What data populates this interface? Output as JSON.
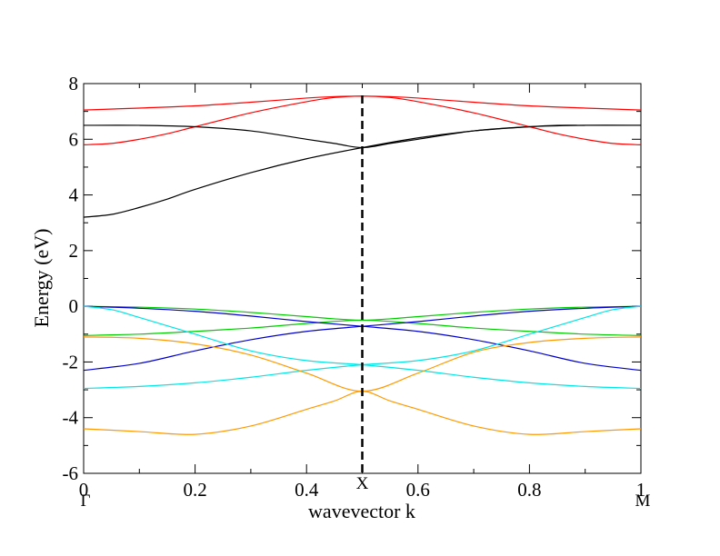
{
  "chart_data": {
    "type": "line",
    "title": "",
    "xlabel": "wavevector k",
    "ylabel": "Energy (eV)",
    "xlim": [
      0,
      1
    ],
    "ylim": [
      -6,
      8
    ],
    "xticks": [
      0,
      0.2,
      0.4,
      0.6,
      0.8,
      1
    ],
    "xtick_labels": [
      "0",
      "0.2",
      "0.4",
      "0.6",
      "0.8",
      "1"
    ],
    "yticks": [
      -6,
      -4,
      -2,
      0,
      2,
      4,
      6,
      8
    ],
    "ytick_labels": [
      "-6",
      "-4",
      "-2",
      "0",
      "2",
      "4",
      "6",
      "8"
    ],
    "grid": false,
    "kpoints": [
      {
        "label": "Γ",
        "k": 0
      },
      {
        "label": "X",
        "k": 0.5
      },
      {
        "label": "M",
        "k": 1
      }
    ],
    "vline": {
      "k": 0.5,
      "style": "dashed"
    },
    "series": [
      {
        "name": "band-red-top",
        "color": "#ff0000",
        "x": [
          0,
          0.1,
          0.2,
          0.3,
          0.4,
          0.45,
          0.5,
          0.55,
          0.6,
          0.7,
          0.8,
          0.9,
          1
        ],
        "values": [
          7.05,
          7.12,
          7.2,
          7.33,
          7.48,
          7.53,
          7.55,
          7.53,
          7.48,
          7.33,
          7.2,
          7.12,
          7.05
        ]
      },
      {
        "name": "band-red-lower",
        "color": "#ff0000",
        "x": [
          0,
          0.05,
          0.1,
          0.15,
          0.2,
          0.3,
          0.4,
          0.45,
          0.5,
          0.55,
          0.6,
          0.7,
          0.8,
          0.85,
          0.9,
          0.95,
          1
        ],
        "values": [
          5.8,
          5.85,
          6.0,
          6.2,
          6.45,
          6.95,
          7.35,
          7.5,
          7.55,
          7.5,
          7.35,
          6.95,
          6.45,
          6.2,
          6.0,
          5.85,
          5.8
        ]
      },
      {
        "name": "band-black-flat",
        "color": "#000000",
        "x": [
          0,
          0.1,
          0.2,
          0.3,
          0.4,
          0.45,
          0.5,
          0.55,
          0.6,
          0.7,
          0.8,
          0.9,
          1
        ],
        "values": [
          6.5,
          6.5,
          6.45,
          6.3,
          6.0,
          5.85,
          5.7,
          5.85,
          6.0,
          6.3,
          6.45,
          6.5,
          6.5
        ]
      },
      {
        "name": "band-black-lower",
        "color": "#000000",
        "x": [
          0,
          0.05,
          0.1,
          0.15,
          0.2,
          0.3,
          0.4,
          0.5,
          0.6,
          0.7,
          0.8,
          0.85,
          0.9,
          0.95,
          1
        ],
        "values": [
          3.2,
          3.3,
          3.55,
          3.85,
          4.2,
          4.8,
          5.3,
          5.7,
          6.05,
          6.3,
          6.45,
          6.5,
          6.5,
          6.5,
          6.5
        ]
      },
      {
        "name": "band-green-top",
        "color": "#00cc00",
        "x": [
          0,
          0.1,
          0.2,
          0.3,
          0.4,
          0.45,
          0.5,
          0.55,
          0.6,
          0.7,
          0.8,
          0.9,
          1
        ],
        "values": [
          0.0,
          -0.03,
          -0.1,
          -0.22,
          -0.37,
          -0.45,
          -0.5,
          -0.45,
          -0.37,
          -0.22,
          -0.1,
          -0.03,
          0.0
        ]
      },
      {
        "name": "band-green-lower",
        "color": "#00cc00",
        "x": [
          0,
          0.1,
          0.2,
          0.3,
          0.4,
          0.5,
          0.6,
          0.7,
          0.8,
          0.9,
          1
        ],
        "values": [
          -1.05,
          -1.0,
          -0.9,
          -0.78,
          -0.62,
          -0.5,
          -0.62,
          -0.78,
          -0.9,
          -1.0,
          -1.05
        ]
      },
      {
        "name": "band-blue-top",
        "color": "#0000cc",
        "x": [
          0,
          0.1,
          0.2,
          0.3,
          0.4,
          0.5,
          0.6,
          0.7,
          0.8,
          0.9,
          1
        ],
        "values": [
          0.0,
          -0.07,
          -0.18,
          -0.35,
          -0.55,
          -0.72,
          -0.9,
          -1.2,
          -1.6,
          -2.05,
          -2.3
        ]
      },
      {
        "name": "band-blue-lower",
        "color": "#0000cc",
        "x": [
          0,
          0.1,
          0.2,
          0.3,
          0.4,
          0.5,
          0.6,
          0.7,
          0.8,
          0.9,
          1
        ],
        "values": [
          -2.3,
          -2.05,
          -1.6,
          -1.2,
          -0.9,
          -0.72,
          -0.55,
          -0.35,
          -0.18,
          -0.07,
          0.0
        ]
      },
      {
        "name": "band-cyan-upper",
        "color": "#00e5e5",
        "x": [
          0,
          0.05,
          0.1,
          0.2,
          0.3,
          0.4,
          0.5,
          0.6,
          0.7,
          0.8,
          0.9,
          1
        ],
        "values": [
          0.0,
          -0.12,
          -0.4,
          -1.0,
          -1.6,
          -1.95,
          -2.1,
          -2.3,
          -2.55,
          -2.75,
          -2.88,
          -2.95
        ]
      },
      {
        "name": "band-cyan-lower",
        "color": "#00e5e5",
        "x": [
          0,
          0.1,
          0.2,
          0.3,
          0.4,
          0.5,
          0.6,
          0.7,
          0.8,
          0.9,
          0.95,
          1
        ],
        "values": [
          -2.95,
          -2.88,
          -2.75,
          -2.55,
          -2.3,
          -2.1,
          -1.95,
          -1.6,
          -1.0,
          -0.4,
          -0.12,
          0.0
        ]
      },
      {
        "name": "band-orange-upper",
        "color": "#ff9900",
        "x": [
          0,
          0.1,
          0.2,
          0.3,
          0.4,
          0.5,
          0.6,
          0.7,
          0.8,
          0.9,
          1
        ],
        "values": [
          -1.1,
          -1.15,
          -1.35,
          -1.75,
          -2.4,
          -3.05,
          -2.4,
          -1.65,
          -1.3,
          -1.15,
          -1.1
        ]
      },
      {
        "name": "band-orange-lower",
        "color": "#ff9900",
        "x": [
          0,
          0.1,
          0.2,
          0.3,
          0.4,
          0.45,
          0.5,
          0.55,
          0.6,
          0.7,
          0.8,
          0.9,
          1
        ],
        "values": [
          -4.4,
          -4.5,
          -4.6,
          -4.3,
          -3.7,
          -3.4,
          -3.05,
          -3.4,
          -3.7,
          -4.3,
          -4.6,
          -4.5,
          -4.4
        ]
      }
    ]
  }
}
